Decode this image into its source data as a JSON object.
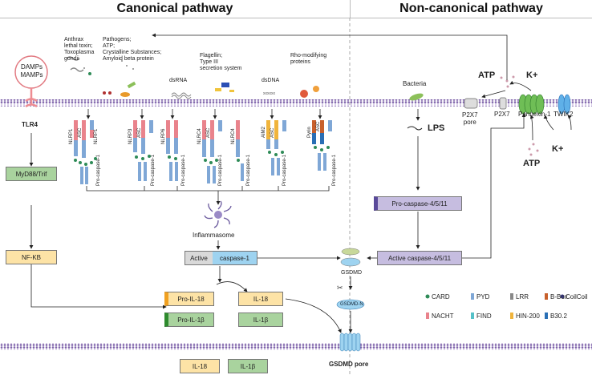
{
  "header": {
    "left_title": "Canonical pathway",
    "right_title": "Non-canonical pathway"
  },
  "ligands": {
    "damps": "DAMPs\nMAMPs",
    "anthrax": [
      "Anthrax",
      "lethal toxin;",
      "Toxoplasma",
      "gondii"
    ],
    "pathogens": [
      "Pathogens;",
      "ATP;",
      "Crystalline Substances;",
      "Amyloid beta protein"
    ],
    "dsrna": "dsRNA",
    "flagellin": [
      "Flagellin;",
      "Type III",
      "secretion system"
    ],
    "dsdna": "dsDNA",
    "rho": [
      "Rho-modifying",
      "proteins"
    ]
  },
  "receptors": {
    "tlr4": "TLR4",
    "nlrp1": "NLRP1",
    "asc": "ASC",
    "nlrp3": "NLRP3",
    "nlrp6": "NLRP6",
    "nlrc4": "NLRC4",
    "aim2": "AIM2",
    "pyrin": "Pyrin",
    "pro_caspase_1": "Pro-caspase-1"
  },
  "canonical": {
    "myd88": "MyD88/Trif",
    "nfkb": "NF-KB",
    "inflammasome": "Inflammasome",
    "active": "Active",
    "caspase1": "caspase-1",
    "pro_il18": "Pro-IL-18",
    "pro_il1b": "Pro-IL-1β",
    "il18": "IL-18",
    "il1b": "IL-1β",
    "il18_out": "IL-18",
    "il1b_out": "IL-1β",
    "gsdmd": "GSDMD",
    "gsdmd_n": "GSDMD-N",
    "gsdmd_pore": "GSDMD pore"
  },
  "noncanonical": {
    "atp_top": "ATP",
    "k_top": "K+",
    "bacteria": "Bacteria",
    "p2x7_pore": [
      "P2X7",
      "pore"
    ],
    "p2x7": "P2X7",
    "pannexin": "Pannexin-1",
    "twik2": "TWIK2",
    "atp_bottom": "ATP",
    "k_bottom": "K+",
    "lps": "LPS",
    "pro_casp": "Pro-caspase-4/5/11",
    "active_casp": "Active caspase-4/5/11"
  },
  "legend": [
    {
      "label": "CARD",
      "color": "#2e8b57",
      "shape": "dot"
    },
    {
      "label": "PYD",
      "color": "#7fa7d6",
      "shape": "rect"
    },
    {
      "label": "LRR",
      "color": "#888888",
      "shape": "rect"
    },
    {
      "label": "B-Box",
      "color": "#c8602c",
      "shape": "rect"
    },
    {
      "label": "CoilCoil",
      "color": "#3b3b8a",
      "shape": "dot"
    },
    {
      "label": "NACHT",
      "color": "#e9838c",
      "shape": "rect"
    },
    {
      "label": "FIND",
      "color": "#55c1c8",
      "shape": "rect"
    },
    {
      "label": "HIN-200",
      "color": "#f0b43c",
      "shape": "rect"
    },
    {
      "label": "B30.2",
      "color": "#2a6fb5",
      "shape": "rect"
    }
  ],
  "colors": {
    "membrane": "#7b5fa8",
    "green_box": "#a9d39e",
    "yellow_box": "#fde3a6",
    "blue_box": "#9ed3f0",
    "purple_box": "#c6bde0",
    "pink_arrow": "#ee8c92"
  }
}
